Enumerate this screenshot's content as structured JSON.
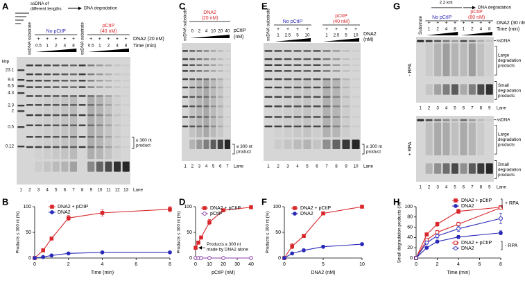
{
  "gels": [
    {
      "panel": "A",
      "schematic": [
        "ssDNA of",
        "different lengths"
      ],
      "arrow_label": "DNA degradation",
      "groups": [
        {
          "label": [
            "No pCtIP"
          ],
          "color": "#2a2ab8"
        },
        {
          "label": [
            "pCtIP",
            "(40 nM)"
          ],
          "color": "#d8262a"
        }
      ],
      "conditions": [
        "DNA2 (20 nM)",
        "Time (min)"
      ],
      "plus": "+",
      "steps": [
        "0.5",
        "1",
        "2",
        "4",
        "8"
      ],
      "size_unit": "kbp",
      "sizes": [
        "23.1",
        "9.4",
        "6.5",
        "4.3",
        "2.3",
        "2",
        "0.5",
        "0.12"
      ],
      "substrate": "ssDNA substrate",
      "product": [
        "≤ 300 nt",
        "product"
      ],
      "lanes": [
        1,
        2,
        3,
        4,
        5,
        6,
        7,
        8,
        9,
        10,
        11,
        12,
        13
      ],
      "lane_label": "Lane"
    },
    {
      "panel": "C",
      "groups": [
        {
          "label": [
            "DNA2",
            "(20 nM)"
          ],
          "color": "#d8262a"
        }
      ],
      "conditions": [
        "pCtIP",
        "(nM)"
      ],
      "steps": [
        "0",
        "2",
        "4",
        "10",
        "20",
        "40"
      ],
      "substrate": "ssDNA substrate",
      "product": [
        "≤ 300 nt",
        "product"
      ],
      "lanes": [
        1,
        2,
        3,
        4,
        5,
        6,
        7
      ],
      "lane_label": "Lane"
    },
    {
      "panel": "E",
      "groups": [
        {
          "label": [
            "No pCtIP"
          ],
          "color": "#2a2ab8"
        },
        {
          "label": [
            "pCtIP",
            "(40 nM)"
          ],
          "color": "#d8262a"
        }
      ],
      "conditions": [
        "DNA2",
        "(nM)"
      ],
      "plus": "+",
      "steps": [
        "1",
        "2.5",
        "5",
        "10"
      ],
      "substrate": "ssDNA substrate",
      "product": [
        "≤ 300 nt",
        "product"
      ],
      "lanes": [
        1,
        2,
        3,
        4,
        5,
        6,
        7,
        8,
        9,
        10
      ],
      "lane_label": "Lane"
    },
    {
      "panel": "G",
      "schematic": [
        "2.2 knt"
      ],
      "arrow_label": "DNA degradation",
      "groups": [
        {
          "label": [
            "No pCtIP"
          ],
          "color": "#2a2ab8"
        },
        {
          "label": [
            "pCtIP",
            "(80 nM)"
          ],
          "color": "#d8262a"
        }
      ],
      "conditions": [
        "DNA2 (30 nM)",
        "Time (min)"
      ],
      "plus": "+",
      "steps": [
        "1",
        "2",
        "4",
        "8"
      ],
      "substrate": "Substrate",
      "ssdna": "ssDNA",
      "large": [
        "Large",
        "degradation",
        "products"
      ],
      "small": [
        "Small",
        "degradation",
        "products"
      ],
      "rpa": [
        "- RPA",
        "+ RPA"
      ],
      "lanes": [
        1,
        2,
        3,
        4,
        5,
        6,
        7,
        8,
        9
      ],
      "lane_label": "Lane"
    }
  ],
  "chart_data": [
    {
      "type": "line",
      "panel": "B",
      "xlabel": "Time (min)",
      "ylabel": "Products ≤ 300 nt (%)",
      "x": [
        0,
        0.5,
        1,
        2,
        4,
        8
      ],
      "xlim": [
        0,
        8
      ],
      "xticks": [
        0,
        2,
        4,
        6,
        8
      ],
      "ylim": [
        0,
        100
      ],
      "yticks": [
        0,
        50,
        100
      ],
      "series": [
        {
          "name": "DNA2 + pCtIP",
          "color": "#d8262a",
          "marker": "square",
          "filled": true,
          "values": [
            0,
            15,
            38,
            78,
            88,
            95
          ],
          "errors": [
            0,
            1,
            2,
            5,
            6,
            5
          ]
        },
        {
          "name": "DNA2",
          "color": "#2a2ab8",
          "marker": "circle",
          "filled": true,
          "values": [
            0,
            2,
            5,
            9,
            11,
            11
          ],
          "errors": [
            0,
            0.5,
            1,
            1,
            1,
            1
          ]
        }
      ]
    },
    {
      "type": "line",
      "panel": "D",
      "xlabel": "pCtIP (nM)",
      "ylabel": "Products ≤ 300 nt (%)",
      "annotation": [
        "Products ≤ 300 nt",
        "made by DNA2 alone"
      ],
      "x": [
        0,
        2,
        4,
        10,
        20,
        40
      ],
      "xlim": [
        0,
        40
      ],
      "xticks": [
        0,
        10,
        20,
        30,
        40
      ],
      "ylim": [
        0,
        100
      ],
      "yticks": [
        0,
        50,
        100
      ],
      "series": [
        {
          "name": "DNA2 + pCtIP",
          "color": "#d8262a",
          "marker": "square",
          "filled": true,
          "values": [
            20,
            30,
            40,
            70,
            93,
            99
          ],
          "errors": [
            0,
            2,
            3,
            5,
            3,
            1
          ]
        },
        {
          "name": "pCtIP",
          "color": "#8a3fa8",
          "marker": "circle",
          "filled": false,
          "values": [
            0,
            0,
            0,
            0,
            0,
            0
          ],
          "errors": [
            0,
            0,
            0,
            0,
            0,
            0
          ]
        }
      ]
    },
    {
      "type": "line",
      "panel": "F",
      "xlabel": "DNA2 (nM)",
      "ylabel": "Products ≤ 300 nt (%)",
      "x": [
        0,
        1,
        2.5,
        5,
        10
      ],
      "xlim": [
        0,
        10
      ],
      "xticks": [
        0,
        5,
        10
      ],
      "ylim": [
        0,
        100
      ],
      "yticks": [
        0,
        50,
        100
      ],
      "series": [
        {
          "name": "DNA2 + pCtIP",
          "color": "#d8262a",
          "marker": "square",
          "filled": true,
          "values": [
            0,
            23,
            43,
            87,
            100
          ],
          "errors": [
            0,
            5,
            3,
            2,
            1
          ]
        },
        {
          "name": "DNA2",
          "color": "#2a2ab8",
          "marker": "circle",
          "filled": true,
          "values": [
            0,
            9,
            15,
            22,
            27
          ],
          "errors": [
            0,
            2,
            3,
            3,
            3
          ]
        }
      ]
    },
    {
      "type": "line",
      "panel": "H",
      "xlabel": "Time (min)",
      "ylabel": "Small degradation products (%)",
      "x": [
        0,
        1,
        2,
        4,
        8
      ],
      "xlim": [
        0,
        8
      ],
      "xticks": [
        0,
        2,
        4,
        6,
        8
      ],
      "ylim": [
        0,
        100
      ],
      "yticks": [
        0,
        20,
        40,
        60,
        80,
        100
      ],
      "legend_groups": [
        {
          "label": "+ RPA",
          "series": [
            {
              "name": "DNA2 + pCtIP",
              "color": "#d8262a",
              "marker": "square",
              "filled": true,
              "values": [
                0,
                46,
                66,
                91,
                99
              ],
              "errors": [
                0,
                3,
                4,
                4,
                2
              ]
            },
            {
              "name": "DNA2",
              "color": "#2a2ab8",
              "marker": "circle",
              "filled": true,
              "values": [
                0,
                20,
                32,
                41,
                49
              ],
              "errors": [
                0,
                2,
                3,
                3,
                4
              ]
            }
          ]
        },
        {
          "label": "- RPA",
          "series": [
            {
              "name": "DNA2 + pCtIP",
              "color": "#d8262a",
              "marker": "square",
              "filled": false,
              "values": [
                0,
                35,
                50,
                66,
                98
              ],
              "errors": [
                0,
                3,
                4,
                4,
                2
              ]
            },
            {
              "name": "DNA2",
              "color": "#2a2ab8",
              "marker": "circle",
              "filled": false,
              "values": [
                0,
                30,
                43,
                57,
                77
              ],
              "errors": [
                0,
                3,
                4,
                5,
                10
              ]
            }
          ]
        }
      ]
    }
  ]
}
